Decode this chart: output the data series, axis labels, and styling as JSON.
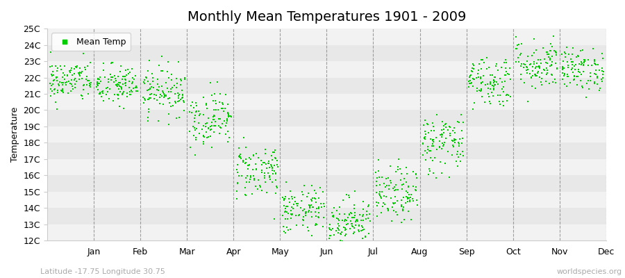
{
  "title": "Monthly Mean Temperatures 1901 - 2009",
  "ylabel": "Temperature",
  "xlabel_bottom_left": "Latitude -17.75 Longitude 30.75",
  "xlabel_bottom_right": "worldspecies.org",
  "legend_label": "Mean Temp",
  "dot_color": "#00CC00",
  "background_color": "#ffffff",
  "band_color_light": "#f2f2f2",
  "band_color_dark": "#e8e8e8",
  "ylim_min": 12,
  "ylim_max": 25,
  "ytick_labels": [
    "12C",
    "13C",
    "14C",
    "15C",
    "16C",
    "17C",
    "18C",
    "19C",
    "20C",
    "21C",
    "22C",
    "23C",
    "24C",
    "25C"
  ],
  "ytick_values": [
    12,
    13,
    14,
    15,
    16,
    17,
    18,
    19,
    20,
    21,
    22,
    23,
    24,
    25
  ],
  "months": [
    "Jan",
    "Feb",
    "Mar",
    "Apr",
    "May",
    "Jun",
    "Jul",
    "Aug",
    "Sep",
    "Oct",
    "Nov",
    "Dec"
  ],
  "monthly_means": [
    21.8,
    21.5,
    21.2,
    19.5,
    16.3,
    13.8,
    13.2,
    14.8,
    18.0,
    21.8,
    22.8,
    22.5
  ],
  "monthly_stds": [
    0.65,
    0.65,
    0.75,
    0.85,
    0.85,
    0.75,
    0.75,
    0.85,
    0.95,
    0.8,
    0.8,
    0.65
  ],
  "num_years": 109,
  "seed": 42,
  "marker_size": 3,
  "title_fontsize": 14,
  "axis_fontsize": 9,
  "tick_fontsize": 9,
  "legend_fontsize": 9
}
